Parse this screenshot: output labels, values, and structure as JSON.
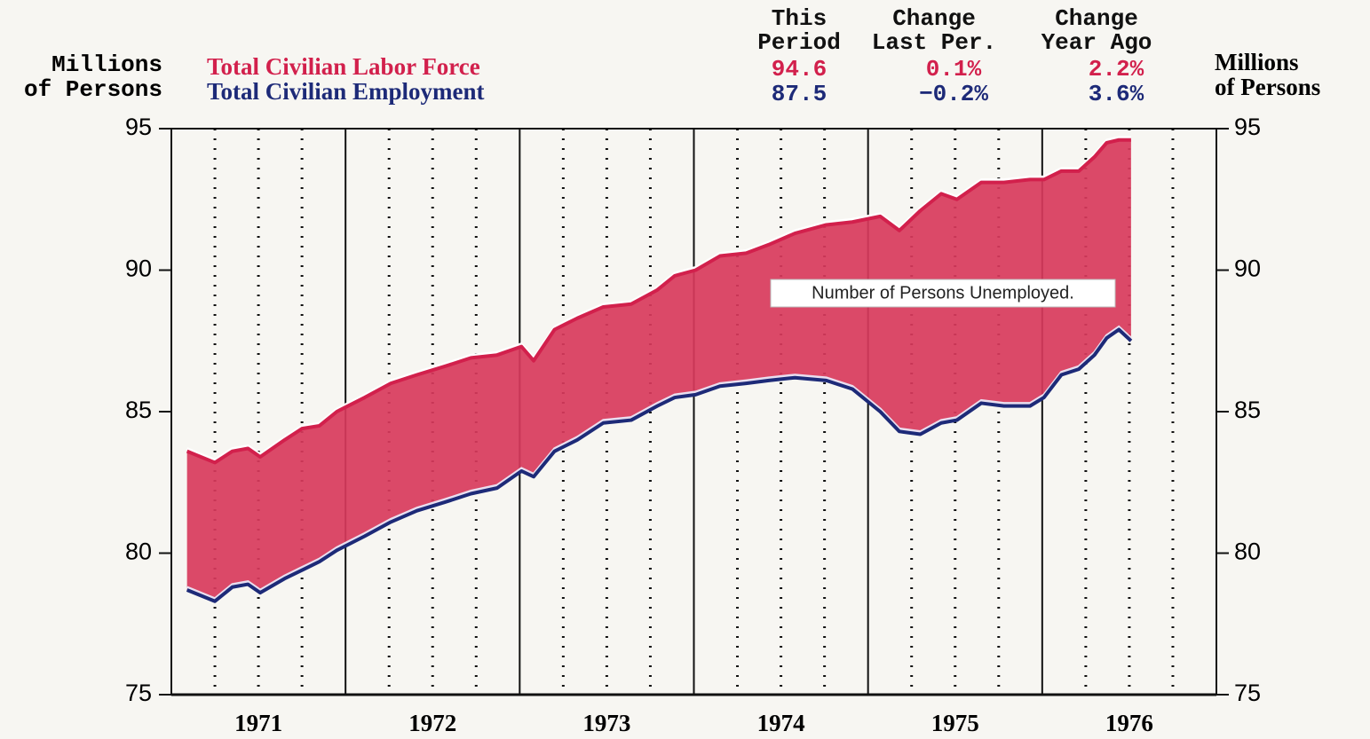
{
  "chart_data": {
    "type": "area-between",
    "y_axis_label": [
      "Millions",
      "of Persons"
    ],
    "y2_axis_label": [
      "Millions",
      "of Persons"
    ],
    "stat_columns": [
      [
        "This",
        "Period"
      ],
      [
        "Change",
        "Last Per."
      ],
      [
        "Change",
        "Year Ago"
      ]
    ],
    "annotation": "Number of Persons Unemployed.",
    "fill_color": "#d83a5c",
    "xlim": [
      1971,
      1977
    ],
    "xticks": [
      {
        "value": 1971.5,
        "label": "1971"
      },
      {
        "value": 1972.5,
        "label": "1972"
      },
      {
        "value": 1973.5,
        "label": "1973"
      },
      {
        "value": 1974.5,
        "label": "1974"
      },
      {
        "value": 1975.5,
        "label": "1975"
      },
      {
        "value": 1976.5,
        "label": "1976"
      }
    ],
    "xgrid_major": [
      1972,
      1973,
      1974,
      1975,
      1976
    ],
    "xgrid_minor": [
      1971.25,
      1971.5,
      1971.75,
      1972.25,
      1972.5,
      1972.75,
      1973.25,
      1973.5,
      1973.75,
      1974.25,
      1974.5,
      1974.75,
      1975.25,
      1975.5,
      1975.75,
      1976.25,
      1976.5,
      1976.75
    ],
    "ylim": [
      75,
      95
    ],
    "yticks": [
      75,
      80,
      85,
      90,
      95
    ],
    "y2lim": [
      75,
      95
    ],
    "y2ticks": [
      75,
      80,
      85,
      90,
      95
    ],
    "x": [
      1971.09,
      1971.25,
      1971.35,
      1971.44,
      1971.51,
      1971.65,
      1971.75,
      1971.85,
      1971.95,
      1972.11,
      1972.26,
      1972.41,
      1972.57,
      1972.72,
      1972.87,
      1973.01,
      1973.08,
      1973.2,
      1973.33,
      1973.48,
      1973.64,
      1973.79,
      1973.89,
      1974.01,
      1974.15,
      1974.3,
      1974.43,
      1974.58,
      1974.76,
      1974.91,
      1975.07,
      1975.18,
      1975.3,
      1975.42,
      1975.51,
      1975.65,
      1975.78,
      1975.93,
      1976.01,
      1976.11,
      1976.21,
      1976.3,
      1976.37,
      1976.44,
      1976.51
    ],
    "series": [
      {
        "name": "Total Civilian Labor Force",
        "color": "#d2204c",
        "stats": [
          "94.6",
          "0.1%",
          "2.2%"
        ],
        "values": [
          83.6,
          83.2,
          83.6,
          83.7,
          83.4,
          84.0,
          84.4,
          84.5,
          85.0,
          85.5,
          86.0,
          86.3,
          86.6,
          86.9,
          87.0,
          87.3,
          86.8,
          87.9,
          88.3,
          88.7,
          88.8,
          89.3,
          89.8,
          90.0,
          90.5,
          90.6,
          90.9,
          91.3,
          91.6,
          91.7,
          91.9,
          91.4,
          92.1,
          92.7,
          92.5,
          93.1,
          93.1,
          93.2,
          93.2,
          93.5,
          93.5,
          94.0,
          94.5,
          94.6,
          94.6
        ]
      },
      {
        "name": "Total Civilian Employment",
        "color": "#1d2a78",
        "stats": [
          "87.5",
          "−0.2%",
          "3.6%"
        ],
        "values": [
          78.7,
          78.3,
          78.8,
          78.9,
          78.6,
          79.1,
          79.4,
          79.7,
          80.1,
          80.6,
          81.1,
          81.5,
          81.8,
          82.1,
          82.3,
          82.9,
          82.7,
          83.6,
          84.0,
          84.6,
          84.7,
          85.2,
          85.5,
          85.6,
          85.9,
          86.0,
          86.1,
          86.2,
          86.1,
          85.8,
          85.0,
          84.3,
          84.2,
          84.6,
          84.7,
          85.3,
          85.2,
          85.2,
          85.5,
          86.3,
          86.5,
          87.0,
          87.6,
          87.9,
          87.5
        ]
      }
    ]
  }
}
